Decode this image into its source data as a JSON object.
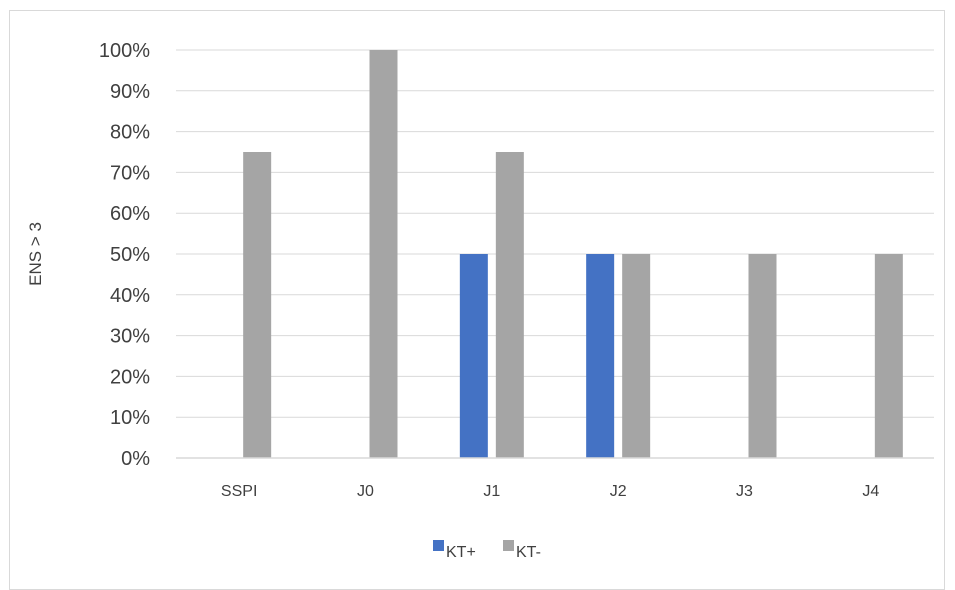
{
  "chart_data": {
    "type": "bar",
    "title": "",
    "xlabel": "",
    "ylabel": "ENS > 3",
    "ylim": [
      0,
      100
    ],
    "y_tick_step": 10,
    "y_tick_format": "percent",
    "grid": true,
    "legend_position": "bottom",
    "categories": [
      "SSPI",
      "J0",
      "J1",
      "J2",
      "J3",
      "J4"
    ],
    "series": [
      {
        "name": "KT+",
        "color": "#4472c4",
        "values": [
          0,
          0,
          50,
          50,
          0,
          0
        ]
      },
      {
        "name": "KT-",
        "color": "#a5a5a5",
        "values": [
          75,
          100,
          75,
          50,
          50,
          50
        ]
      }
    ]
  }
}
